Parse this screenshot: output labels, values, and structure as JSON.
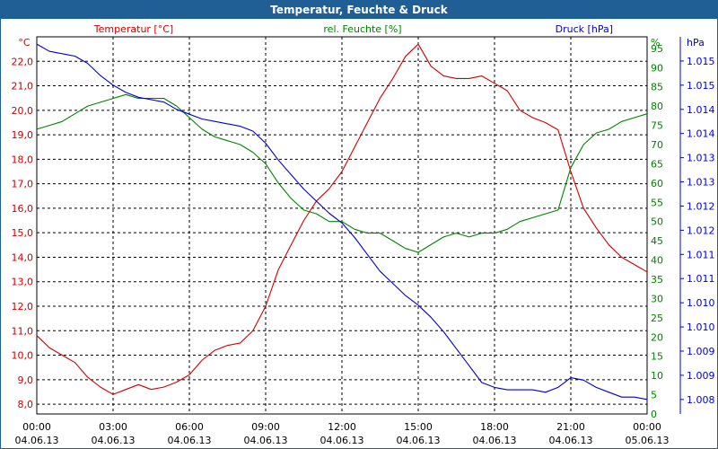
{
  "window": {
    "title": "Temperatur, Feuchte & Druck"
  },
  "colors": {
    "temperature": "#cc0000",
    "humidity": "#008000",
    "pressure": "#0000cc",
    "titlebar": "#1f5f95",
    "grid": "#000000"
  },
  "chart_data": {
    "type": "line",
    "title": "Temperatur, Feuchte & Druck",
    "x_ticks": [
      {
        "time": "00:00",
        "date": "04.06.13"
      },
      {
        "time": "03:00",
        "date": "04.06.13"
      },
      {
        "time": "06:00",
        "date": "04.06.13"
      },
      {
        "time": "09:00",
        "date": "04.06.13"
      },
      {
        "time": "12:00",
        "date": "04.06.13"
      },
      {
        "time": "15:00",
        "date": "04.06.13"
      },
      {
        "time": "18:00",
        "date": "04.06.13"
      },
      {
        "time": "21:00",
        "date": "04.06.13"
      },
      {
        "time": "00:00",
        "date": "05.06.13"
      }
    ],
    "x_range_hours": [
      0,
      24
    ],
    "axes": {
      "temperature": {
        "unit_label": "°C",
        "range": [
          7.6,
          23.0
        ],
        "ticks": [
          "8,0",
          "9,0",
          "10,0",
          "11,0",
          "12,0",
          "13,0",
          "14,0",
          "15,0",
          "16,0",
          "17,0",
          "18,0",
          "19,0",
          "20,0",
          "21,0",
          "22,0"
        ]
      },
      "humidity": {
        "unit_label": "%",
        "range": [
          0,
          98
        ],
        "ticks": [
          "0",
          "5",
          "10",
          "15",
          "20",
          "25",
          "30",
          "35",
          "40",
          "45",
          "50",
          "55",
          "60",
          "65",
          "70",
          "75",
          "80",
          "85",
          "90",
          "95"
        ]
      },
      "pressure": {
        "unit_label": "hPa",
        "range": [
          1007.7,
          1015.5
        ],
        "ticks": [
          "1.008",
          "1.009",
          "1.009",
          "1.010",
          "1.010",
          "1.011",
          "1.011",
          "1.012",
          "1.012",
          "1.013",
          "1.013",
          "1.014",
          "1.014",
          "1.015",
          "1.015"
        ]
      }
    },
    "series": [
      {
        "name": "Temperatur [°C]",
        "axis": "temperature",
        "points": [
          [
            0,
            10.8
          ],
          [
            0.5,
            10.3
          ],
          [
            1,
            10.0
          ],
          [
            1.5,
            9.7
          ],
          [
            2,
            9.1
          ],
          [
            2.5,
            8.7
          ],
          [
            3,
            8.4
          ],
          [
            3.5,
            8.6
          ],
          [
            4,
            8.8
          ],
          [
            4.5,
            8.6
          ],
          [
            5,
            8.7
          ],
          [
            5.5,
            8.9
          ],
          [
            6,
            9.2
          ],
          [
            6.5,
            9.8
          ],
          [
            7,
            10.2
          ],
          [
            7.5,
            10.4
          ],
          [
            8,
            10.5
          ],
          [
            8.5,
            11.0
          ],
          [
            9,
            12.0
          ],
          [
            9.5,
            13.5
          ],
          [
            10,
            14.5
          ],
          [
            10.5,
            15.5
          ],
          [
            11,
            16.3
          ],
          [
            11.5,
            16.8
          ],
          [
            12,
            17.5
          ],
          [
            12.5,
            18.5
          ],
          [
            13,
            19.5
          ],
          [
            13.5,
            20.5
          ],
          [
            14,
            21.3
          ],
          [
            14.5,
            22.2
          ],
          [
            15,
            22.7
          ],
          [
            15.5,
            21.8
          ],
          [
            16,
            21.4
          ],
          [
            16.5,
            21.3
          ],
          [
            17,
            21.3
          ],
          [
            17.5,
            21.4
          ],
          [
            18,
            21.1
          ],
          [
            18.5,
            20.8
          ],
          [
            19,
            20.0
          ],
          [
            19.5,
            19.7
          ],
          [
            20,
            19.5
          ],
          [
            20.5,
            19.2
          ],
          [
            21,
            17.5
          ],
          [
            21.5,
            16.0
          ],
          [
            22,
            15.2
          ],
          [
            22.5,
            14.5
          ],
          [
            23,
            14.0
          ],
          [
            23.5,
            13.7
          ],
          [
            24,
            13.4
          ]
        ]
      },
      {
        "name": "rel. Feuchte [%]",
        "axis": "humidity",
        "points": [
          [
            0,
            74
          ],
          [
            0.5,
            75
          ],
          [
            1,
            76
          ],
          [
            1.5,
            78
          ],
          [
            2,
            80
          ],
          [
            2.5,
            81
          ],
          [
            3,
            82
          ],
          [
            3.5,
            83
          ],
          [
            4,
            82
          ],
          [
            4.5,
            82
          ],
          [
            5,
            82
          ],
          [
            5.5,
            80
          ],
          [
            6,
            77
          ],
          [
            6.5,
            74
          ],
          [
            7,
            72
          ],
          [
            7.5,
            71
          ],
          [
            8,
            70
          ],
          [
            8.5,
            68
          ],
          [
            9,
            65
          ],
          [
            9.5,
            60
          ],
          [
            10,
            56
          ],
          [
            10.5,
            53
          ],
          [
            11,
            52
          ],
          [
            11.5,
            50
          ],
          [
            12,
            50
          ],
          [
            12.5,
            48
          ],
          [
            13,
            47
          ],
          [
            13.5,
            47
          ],
          [
            14,
            45
          ],
          [
            14.5,
            43
          ],
          [
            15,
            42
          ],
          [
            15.5,
            44
          ],
          [
            16,
            46
          ],
          [
            16.5,
            47
          ],
          [
            17,
            46
          ],
          [
            17.5,
            47
          ],
          [
            18,
            47
          ],
          [
            18.5,
            48
          ],
          [
            19,
            50
          ],
          [
            19.5,
            51
          ],
          [
            20,
            52
          ],
          [
            20.5,
            53
          ],
          [
            21,
            64
          ],
          [
            21.5,
            70
          ],
          [
            22,
            73
          ],
          [
            22.5,
            74
          ],
          [
            23,
            76
          ],
          [
            23.5,
            77
          ],
          [
            24,
            78
          ]
        ]
      },
      {
        "name": "Druck [hPa]",
        "axis": "pressure",
        "points": [
          [
            0,
            1015.35
          ],
          [
            0.5,
            1015.2
          ],
          [
            1,
            1015.15
          ],
          [
            1.5,
            1015.1
          ],
          [
            2,
            1014.95
          ],
          [
            2.5,
            1014.7
          ],
          [
            3,
            1014.5
          ],
          [
            3.5,
            1014.35
          ],
          [
            4,
            1014.25
          ],
          [
            4.5,
            1014.2
          ],
          [
            5,
            1014.15
          ],
          [
            5.5,
            1014.0
          ],
          [
            6,
            1013.9
          ],
          [
            6.5,
            1013.8
          ],
          [
            7,
            1013.75
          ],
          [
            7.5,
            1013.7
          ],
          [
            8,
            1013.65
          ],
          [
            8.5,
            1013.55
          ],
          [
            9,
            1013.3
          ],
          [
            9.5,
            1012.95
          ],
          [
            10,
            1012.65
          ],
          [
            10.5,
            1012.35
          ],
          [
            11,
            1012.1
          ],
          [
            11.5,
            1011.85
          ],
          [
            12,
            1011.65
          ],
          [
            12.5,
            1011.35
          ],
          [
            13,
            1011.0
          ],
          [
            13.5,
            1010.65
          ],
          [
            14,
            1010.4
          ],
          [
            14.5,
            1010.15
          ],
          [
            15,
            1009.95
          ],
          [
            15.5,
            1009.7
          ],
          [
            16,
            1009.4
          ],
          [
            16.5,
            1009.05
          ],
          [
            17,
            1008.7
          ],
          [
            17.5,
            1008.35
          ],
          [
            18,
            1008.25
          ],
          [
            18.5,
            1008.2
          ],
          [
            19,
            1008.2
          ],
          [
            19.5,
            1008.2
          ],
          [
            20,
            1008.15
          ],
          [
            20.5,
            1008.25
          ],
          [
            21,
            1008.45
          ],
          [
            21.5,
            1008.4
          ],
          [
            22,
            1008.25
          ],
          [
            22.5,
            1008.15
          ],
          [
            23,
            1008.05
          ],
          [
            23.5,
            1008.05
          ],
          [
            24,
            1008.0
          ]
        ]
      }
    ]
  }
}
